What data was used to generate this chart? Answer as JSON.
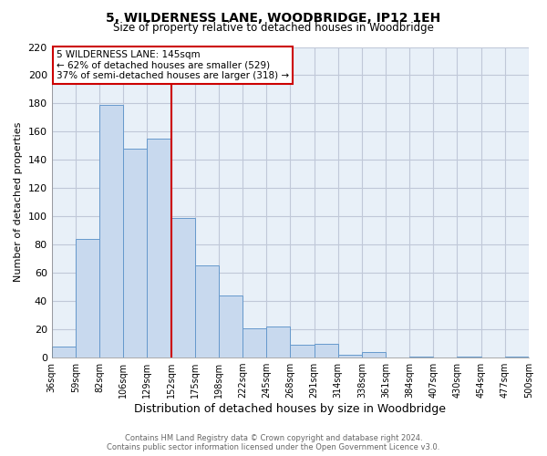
{
  "title": "5, WILDERNESS LANE, WOODBRIDGE, IP12 1EH",
  "subtitle": "Size of property relative to detached houses in Woodbridge",
  "xlabel": "Distribution of detached houses by size in Woodbridge",
  "ylabel": "Number of detached properties",
  "bar_values": [
    8,
    84,
    179,
    148,
    155,
    99,
    65,
    44,
    21,
    22,
    9,
    10,
    2,
    4,
    0,
    1,
    0,
    1,
    0,
    1
  ],
  "bin_labels": [
    "36sqm",
    "59sqm",
    "82sqm",
    "106sqm",
    "129sqm",
    "152sqm",
    "175sqm",
    "198sqm",
    "222sqm",
    "245sqm",
    "268sqm",
    "291sqm",
    "314sqm",
    "338sqm",
    "361sqm",
    "384sqm",
    "407sqm",
    "430sqm",
    "454sqm",
    "477sqm",
    "500sqm"
  ],
  "bar_color": "#c8d9ee",
  "bar_edge_color": "#6699cc",
  "vline_color": "#cc0000",
  "annotation_box_text": "5 WILDERNESS LANE: 145sqm\n← 62% of detached houses are smaller (529)\n37% of semi-detached houses are larger (318) →",
  "ylim": [
    0,
    220
  ],
  "yticks": [
    0,
    20,
    40,
    60,
    80,
    100,
    120,
    140,
    160,
    180,
    200,
    220
  ],
  "plot_bg_color": "#e8f0f8",
  "footer_line1": "Contains HM Land Registry data © Crown copyright and database right 2024.",
  "footer_line2": "Contains public sector information licensed under the Open Government Licence v3.0.",
  "background_color": "#ffffff",
  "grid_color": "#c0c8d8"
}
